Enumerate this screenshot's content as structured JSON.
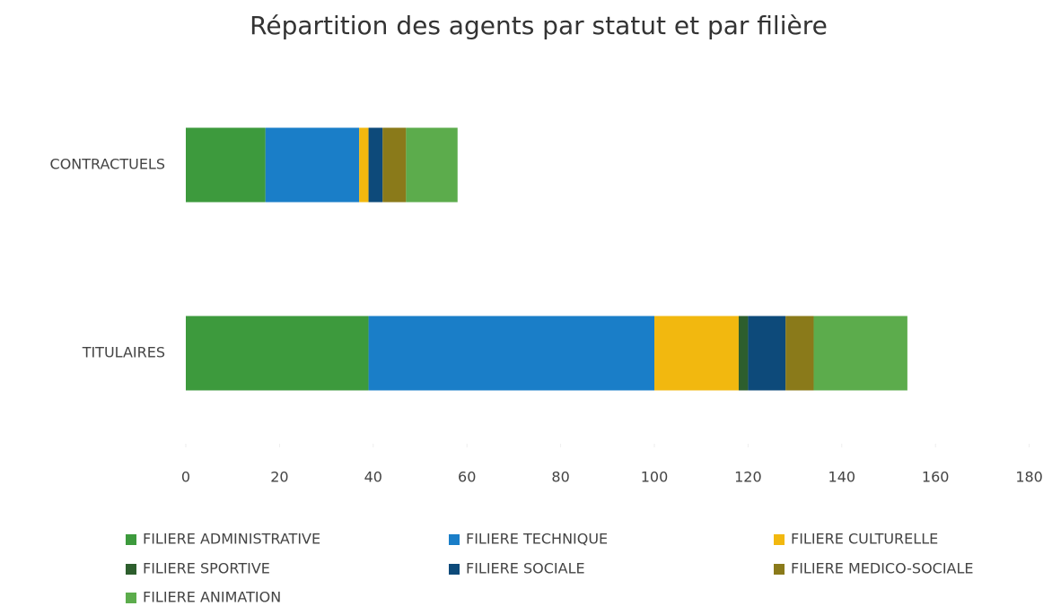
{
  "chart_data": {
    "type": "stacked-hbar",
    "title": "Répartition des agents par statut et par filière",
    "categories": [
      "CONTRACTUELS",
      "TITULAIRES"
    ],
    "series": [
      {
        "name": "FILIERE ADMINISTRATIVE",
        "color": "#3d9a3d",
        "values": [
          17,
          39
        ]
      },
      {
        "name": "FILIERE TECHNIQUE",
        "color": "#1a7ec8",
        "values": [
          20,
          61
        ]
      },
      {
        "name": "FILIERE CULTURELLE",
        "color": "#f2b80f",
        "values": [
          2,
          18
        ]
      },
      {
        "name": "FILIERE SPORTIVE",
        "color": "#2d5e2d",
        "values": [
          0,
          2
        ]
      },
      {
        "name": "FILIERE SOCIALE",
        "color": "#0d4a7a",
        "values": [
          3,
          8
        ]
      },
      {
        "name": "FILIERE MEDICO-SOCIALE",
        "color": "#8a7a1a",
        "values": [
          5,
          6
        ]
      },
      {
        "name": "FILIERE ANIMATION",
        "color": "#5cac4c",
        "values": [
          11,
          20
        ]
      }
    ],
    "xlim": [
      0,
      180
    ],
    "xticks": [
      0,
      20,
      40,
      60,
      80,
      100,
      120,
      140,
      160,
      180
    ],
    "grid": false,
    "legend": "bottom"
  }
}
